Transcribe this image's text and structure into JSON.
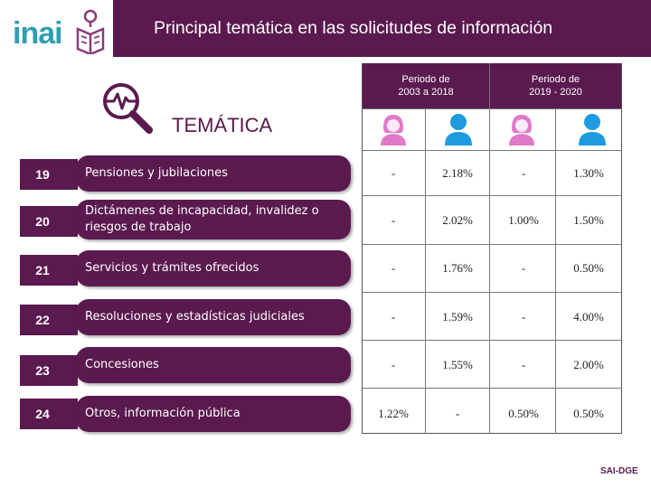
{
  "header": {
    "logo_text": "inai",
    "title": "Principal temática en las solicitudes de información"
  },
  "section_label": "TEMÁTICA",
  "periods": [
    {
      "label_line1": "Periodo de",
      "label_line2": "2003 a 2018"
    },
    {
      "label_line1": "Periodo de",
      "label_line2": "2019 - 2020"
    }
  ],
  "icons": {
    "search": "search-pulse-icon",
    "female": "female-user-icon",
    "male": "male-user-icon"
  },
  "colors": {
    "brand_purple": "#5a1a4f",
    "logo_teal": "#2e9fb1",
    "female_pink": "#e07ac8",
    "male_blue": "#1e9be0"
  },
  "rows": [
    {
      "number": "19",
      "topic": "Pensiones y jubilaciones",
      "values": [
        "-",
        "2.18%",
        "-",
        "1.30%"
      ]
    },
    {
      "number": "20",
      "topic": "Dictámenes de incapacidad, invalidez o riesgos de trabajo",
      "values": [
        "-",
        "2.02%",
        "1.00%",
        "1.50%"
      ]
    },
    {
      "number": "21",
      "topic": "Servicios y trámites ofrecidos",
      "values": [
        "-",
        "1.76%",
        "-",
        "0.50%"
      ]
    },
    {
      "number": "22",
      "topic": "Resoluciones y estadísticas judiciales",
      "values": [
        "-",
        "1.59%",
        "-",
        "4.00%"
      ]
    },
    {
      "number": "23",
      "topic": "Concesiones",
      "values": [
        "-",
        "1.55%",
        "-",
        "2.00%"
      ]
    },
    {
      "number": "24",
      "topic": "Otros, información pública",
      "values": [
        "1.22%",
        "-",
        "0.50%",
        "0.50%"
      ]
    }
  ],
  "footer": "SAI-DGE"
}
